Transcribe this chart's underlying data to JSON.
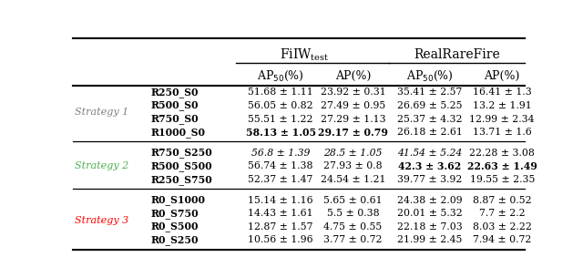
{
  "strategies": [
    {
      "label": "Strategy 1",
      "label_color": "#808080",
      "rows": [
        {
          "name": "R250_S0",
          "vals": [
            "51.68 ± 1.11",
            "23.92 ± 0.31",
            "35.41 ± 2.57",
            "16.41 ± 1.3"
          ],
          "bold_vals": [
            false,
            false,
            false,
            false
          ],
          "italic_vals": [
            false,
            false,
            false,
            false
          ]
        },
        {
          "name": "R500_S0",
          "vals": [
            "56.05 ± 0.82",
            "27.49 ± 0.95",
            "26.69 ± 5.25",
            "13.2 ± 1.91"
          ],
          "bold_vals": [
            false,
            false,
            false,
            false
          ],
          "italic_vals": [
            false,
            false,
            false,
            false
          ]
        },
        {
          "name": "R750_S0",
          "vals": [
            "55.51 ± 1.22",
            "27.29 ± 1.13",
            "25.37 ± 4.32",
            "12.99 ± 2.34"
          ],
          "bold_vals": [
            false,
            false,
            false,
            false
          ],
          "italic_vals": [
            false,
            false,
            false,
            false
          ]
        },
        {
          "name": "R1000_S0",
          "vals": [
            "58.13 ± 1.05",
            "29.17 ± 0.79",
            "26.18 ± 2.61",
            "13.71 ± 1.6"
          ],
          "bold_vals": [
            true,
            true,
            false,
            false
          ],
          "italic_vals": [
            false,
            false,
            false,
            false
          ]
        }
      ]
    },
    {
      "label": "Strategy 2",
      "label_color": "#4CAF50",
      "rows": [
        {
          "name": "R750_S250",
          "vals": [
            "56.8 ± 1.39",
            "28.5 ± 1.05",
            "41.54 ± 5.24",
            "22.28 ± 3.08"
          ],
          "bold_vals": [
            false,
            false,
            false,
            false
          ],
          "italic_vals": [
            true,
            true,
            true,
            false
          ]
        },
        {
          "name": "R500_S500",
          "vals": [
            "56.74 ± 1.38",
            "27.93 ± 0.8",
            "42.3 ± 3.62",
            "22.63 ± 1.49"
          ],
          "bold_vals": [
            false,
            false,
            true,
            true
          ],
          "italic_vals": [
            false,
            false,
            false,
            false
          ]
        },
        {
          "name": "R250_S750",
          "vals": [
            "52.37 ± 1.47",
            "24.54 ± 1.21",
            "39.77 ± 3.92",
            "19.55 ± 2.35"
          ],
          "bold_vals": [
            false,
            false,
            false,
            false
          ],
          "italic_vals": [
            false,
            false,
            false,
            false
          ]
        }
      ]
    },
    {
      "label": "Strategy 3",
      "label_color": "#FF0000",
      "rows": [
        {
          "name": "R0_S1000",
          "vals": [
            "15.14 ± 1.16",
            "5.65 ± 0.61",
            "24.38 ± 2.09",
            "8.87 ± 0.52"
          ],
          "bold_vals": [
            false,
            false,
            false,
            false
          ],
          "italic_vals": [
            false,
            false,
            false,
            false
          ]
        },
        {
          "name": "R0_S750",
          "vals": [
            "14.43 ± 1.61",
            "5.5 ± 0.38",
            "20.01 ± 5.32",
            "7.7 ± 2.2"
          ],
          "bold_vals": [
            false,
            false,
            false,
            false
          ],
          "italic_vals": [
            false,
            false,
            false,
            false
          ]
        },
        {
          "name": "R0_S500",
          "vals": [
            "12.87 ± 1.57",
            "4.75 ± 0.55",
            "22.18 ± 7.03",
            "8.03 ± 2.22"
          ],
          "bold_vals": [
            false,
            false,
            false,
            false
          ],
          "italic_vals": [
            false,
            false,
            false,
            false
          ]
        },
        {
          "name": "R0_S250",
          "vals": [
            "10.56 ± 1.96",
            "3.77 ± 0.72",
            "21.99 ± 2.45",
            "7.94 ± 0.72"
          ],
          "bold_vals": [
            false,
            false,
            false,
            false
          ],
          "italic_vals": [
            false,
            false,
            false,
            false
          ]
        }
      ]
    }
  ]
}
